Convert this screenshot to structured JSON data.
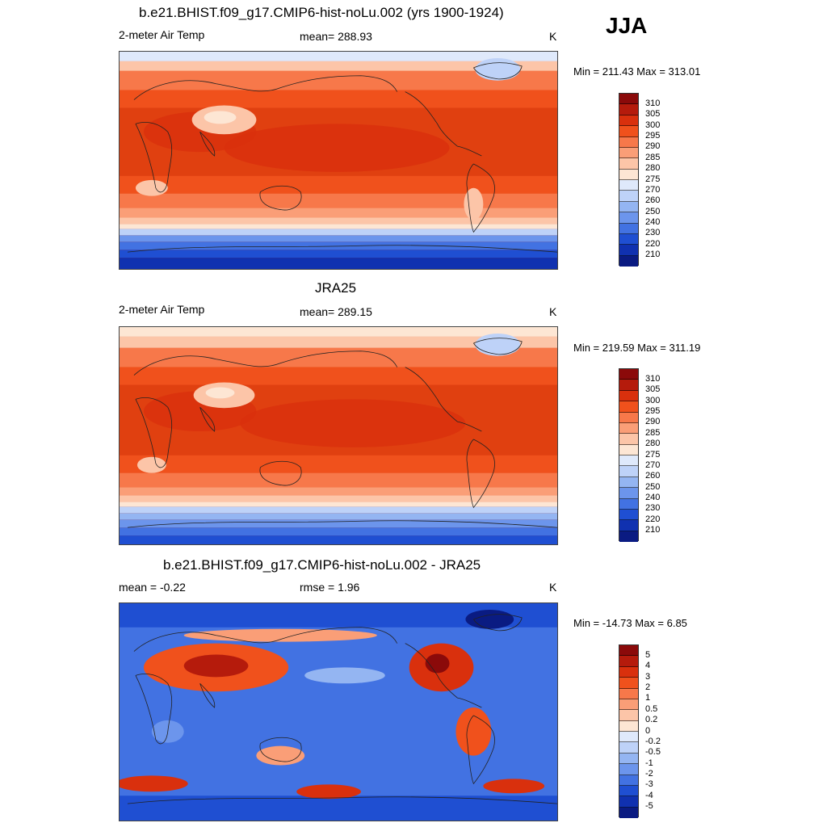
{
  "season": "JJA",
  "panels": [
    {
      "title": "b.e21.BHIST.f09_g17.CMIP6-hist-noLu.002 (yrs 1900-1924)",
      "left_label": "2-meter Air Temp",
      "center_label": "mean= 288.93",
      "units": "K",
      "minmax": "Min = 211.43 Max = 313.01"
    },
    {
      "title": "JRA25",
      "left_label": "2-meter Air Temp",
      "center_label": "mean= 289.15",
      "units": "K",
      "minmax": "Min = 219.59 Max = 311.19"
    },
    {
      "title": "b.e21.BHIST.f09_g17.CMIP6-hist-noLu.002 - JRA25",
      "left_label": "mean =  -0.22",
      "center_label": "rmse =   1.96",
      "units": "K",
      "minmax": "Min = -14.73 Max =   6.85"
    }
  ],
  "temp_colorbar": {
    "labels": [
      "310",
      "305",
      "300",
      "295",
      "290",
      "285",
      "280",
      "275",
      "270",
      "260",
      "250",
      "240",
      "230",
      "220",
      "210"
    ],
    "colors": [
      "#8b0a0a",
      "#b51b0c",
      "#d9300d",
      "#f0511c",
      "#f7784a",
      "#fa9e77",
      "#fcc5a8",
      "#fde6d4",
      "#dfe9fb",
      "#bed2f8",
      "#94b5f2",
      "#6c95ec",
      "#4272e2",
      "#1f4fd2",
      "#1031b0",
      "#0a1b82"
    ]
  },
  "diff_colorbar": {
    "labels": [
      "5",
      "4",
      "3",
      "2",
      "1",
      "0.5",
      "0.2",
      "0",
      "-0.2",
      "-0.5",
      "-1",
      "-2",
      "-3",
      "-4",
      "-5"
    ],
    "colors": [
      "#8b0a0a",
      "#b51b0c",
      "#d9300d",
      "#f0511c",
      "#f7784a",
      "#fa9e77",
      "#fcc5a8",
      "#fde6d4",
      "#dfe9fb",
      "#bed2f8",
      "#94b5f2",
      "#6c95ec",
      "#4272e2",
      "#1f4fd2",
      "#1031b0",
      "#0a1b82"
    ]
  }
}
